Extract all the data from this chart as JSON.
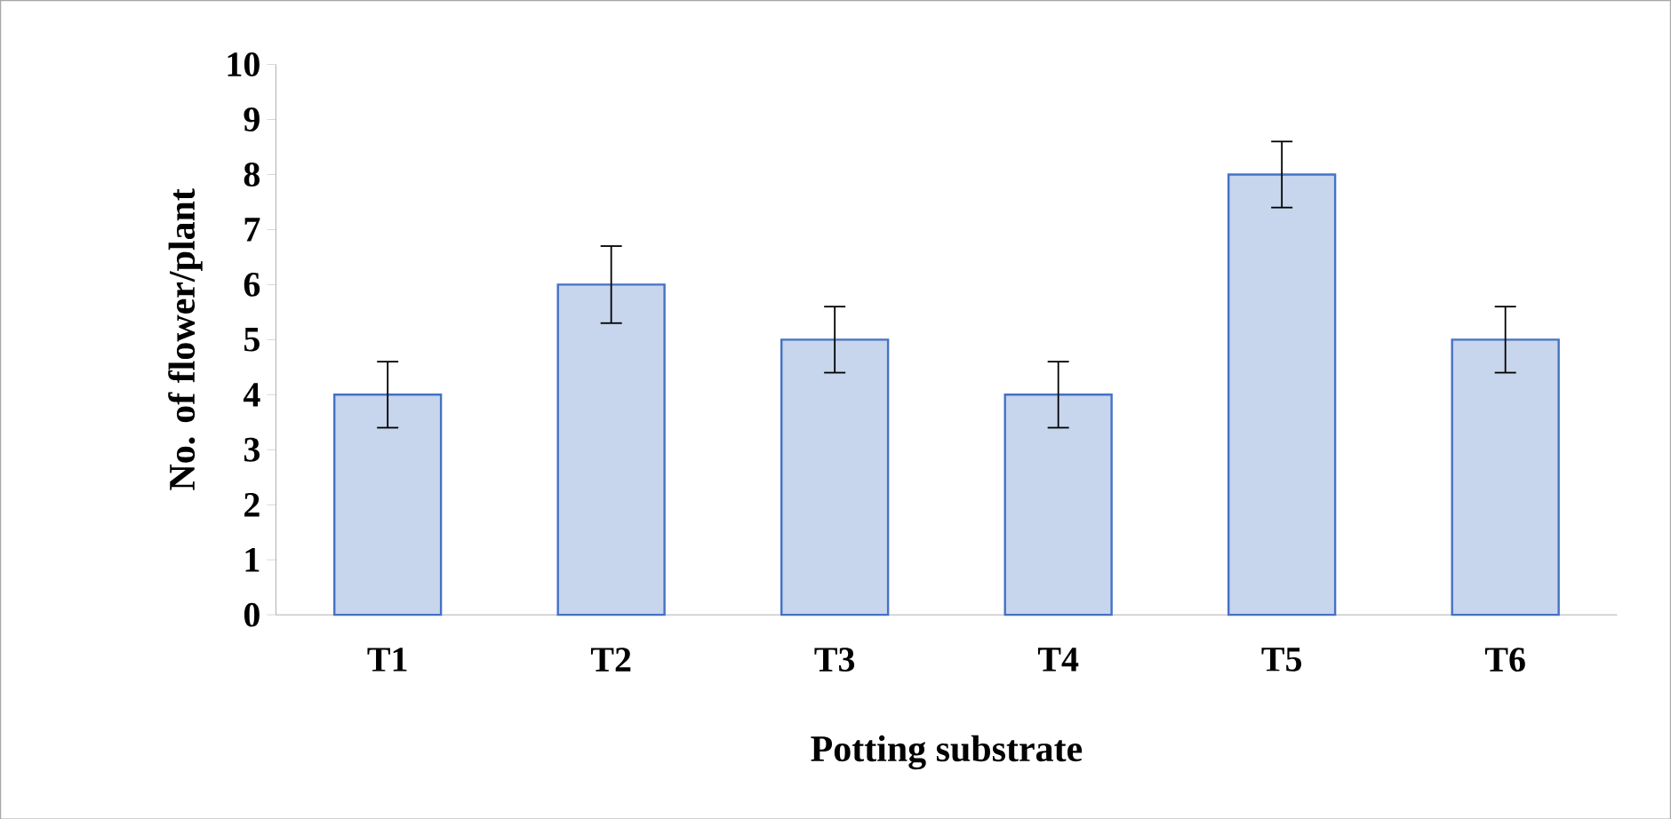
{
  "chart_data": {
    "type": "bar",
    "xlabel": "Potting substrate",
    "ylabel": "No. of flower/plant",
    "categories": [
      "T1",
      "T2",
      "T3",
      "T4",
      "T5",
      "T6"
    ],
    "values": [
      4,
      6,
      5,
      4,
      8,
      5
    ],
    "errors": [
      0.6,
      0.7,
      0.6,
      0.6,
      0.6,
      0.6
    ],
    "color": "#4472c4",
    "ylim": [
      0,
      10
    ],
    "yticks": [
      0,
      1,
      2,
      3,
      4,
      5,
      6,
      7,
      8,
      9,
      10
    ],
    "grid": false
  }
}
